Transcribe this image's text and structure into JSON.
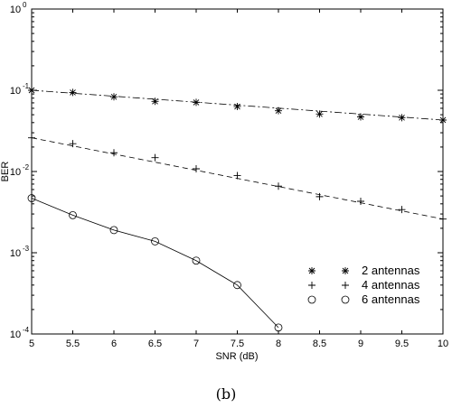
{
  "caption": "(b)",
  "chart_data": {
    "type": "line",
    "xlabel": "SNR (dB)",
    "ylabel": "BER",
    "xlim": [
      5,
      10
    ],
    "ylim": [
      0.0001,
      1
    ],
    "yscale": "log",
    "grid": false,
    "legend_position": "lower-right",
    "x_ticks": [
      "5",
      "5.5",
      "6",
      "6.5",
      "7",
      "7.5",
      "8",
      "8.5",
      "9",
      "9.5",
      "10"
    ],
    "y_ticks": [
      {
        "base": "10",
        "exp": "0"
      },
      {
        "base": "10",
        "exp": "-1"
      },
      {
        "base": "10",
        "exp": "-2"
      },
      {
        "base": "10",
        "exp": "-3"
      },
      {
        "base": "10",
        "exp": "-4"
      }
    ],
    "series": [
      {
        "name": "2 antennas",
        "marker": "asterisk",
        "line": "dashdot",
        "x": [
          5,
          5.5,
          6,
          6.5,
          7,
          7.5,
          8,
          8.5,
          9,
          9.5,
          10
        ],
        "y": [
          0.1,
          0.094,
          0.083,
          0.073,
          0.071,
          0.063,
          0.056,
          0.051,
          0.047,
          0.046,
          0.043
        ],
        "fit_y": [
          0.1,
          0.043
        ]
      },
      {
        "name": "4 antennas",
        "marker": "plus",
        "line": "dashed",
        "x": [
          5,
          5.5,
          6,
          6.5,
          7,
          7.5,
          8,
          8.5,
          9,
          9.5,
          10
        ],
        "y": [
          0.026,
          0.022,
          0.017,
          0.0148,
          0.0108,
          0.0089,
          0.0066,
          0.0049,
          0.0043,
          0.0034,
          0.0026
        ],
        "fit_y": [
          0.026,
          0.0026
        ]
      },
      {
        "name": "6 antennas",
        "marker": "circle",
        "line": "solid",
        "x": [
          5,
          5.5,
          6,
          6.5,
          7,
          7.5,
          8
        ],
        "y": [
          0.0047,
          0.0029,
          0.0019,
          0.00138,
          0.0008,
          0.0004,
          0.00012
        ]
      }
    ]
  }
}
